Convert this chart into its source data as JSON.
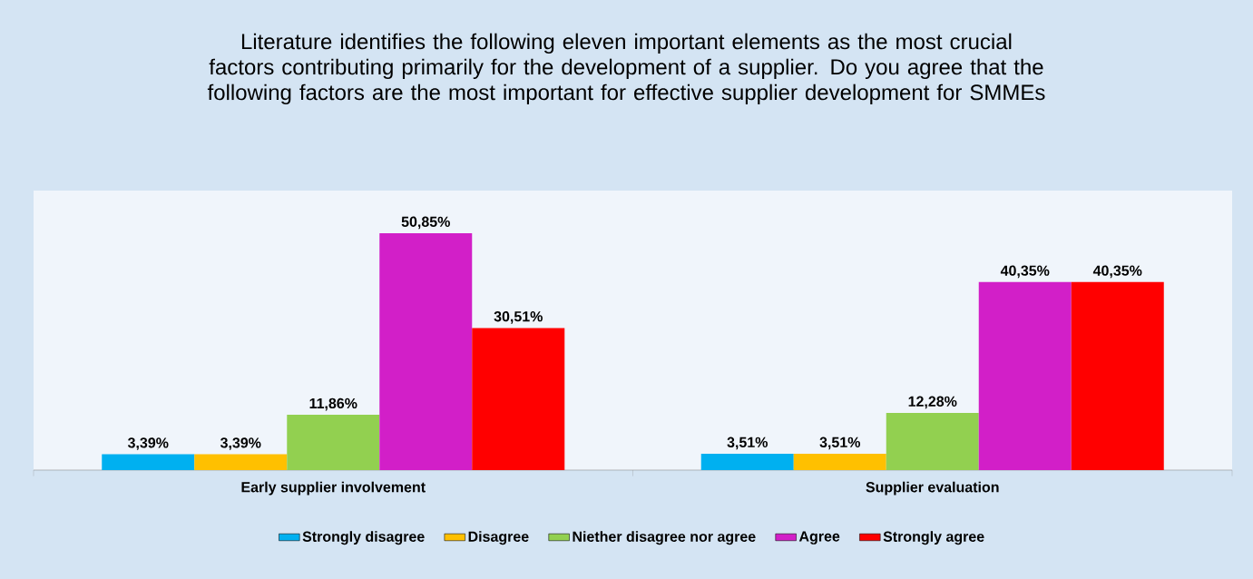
{
  "chart_data": {
    "type": "bar",
    "title": "Literature identifies the following eleven important elements as the most crucial factors contributing primarily for the development of a supplier. Do you agree that the following factors are the most important for effective supplier development for SMMEs",
    "categories": [
      "Early supplier involvement",
      "Supplier evaluation"
    ],
    "series": [
      {
        "name": "Strongly disagree",
        "color": "#00b0f0",
        "values": [
          3.39,
          3.51
        ],
        "value_labels": [
          "3,39%",
          "3,51%"
        ]
      },
      {
        "name": "Disagree",
        "color": "#ffc000",
        "values": [
          3.39,
          3.51
        ],
        "value_labels": [
          "3,39%",
          "3,51%"
        ]
      },
      {
        "name": "Niether disagree nor agree",
        "color": "#92d050",
        "values": [
          11.86,
          12.28
        ],
        "value_labels": [
          "11,86%",
          "12,28%"
        ]
      },
      {
        "name": "Agree",
        "color": "#d21fc8",
        "values": [
          50.85,
          40.35
        ],
        "value_labels": [
          "50,85%",
          "40,35%"
        ]
      },
      {
        "name": "Strongly agree",
        "color": "#ff0000",
        "values": [
          30.51,
          40.35
        ],
        "value_labels": [
          "30,51%",
          "40,35%"
        ]
      }
    ],
    "legend": "bottom",
    "grid": false
  }
}
